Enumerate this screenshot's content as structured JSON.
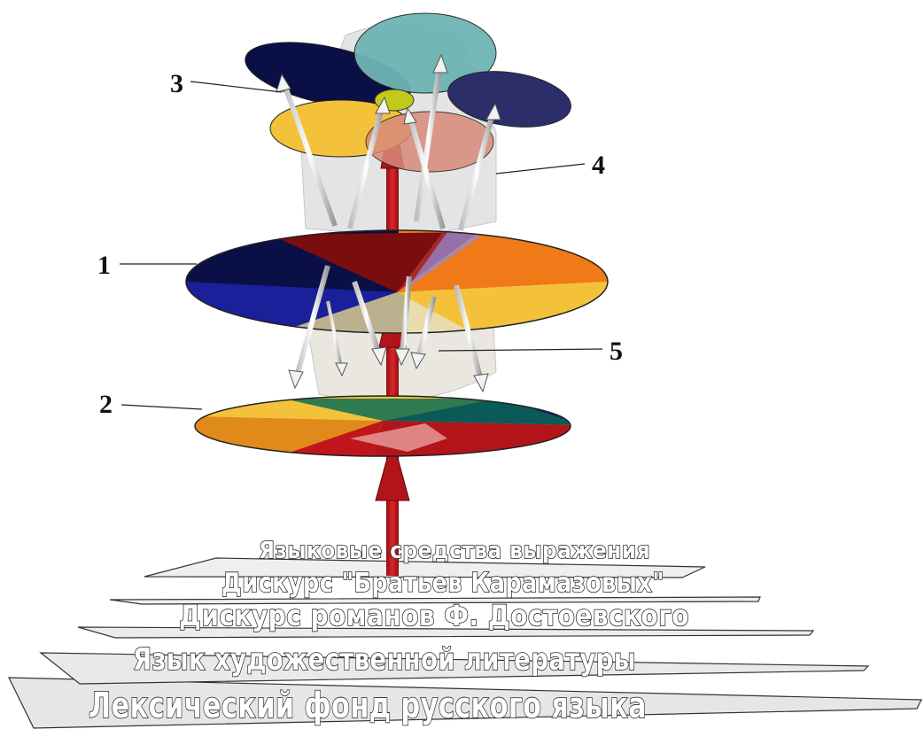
{
  "callouts": {
    "c1": "1",
    "c2": "2",
    "c3": "3",
    "c4": "4",
    "c5": "5"
  },
  "layers": {
    "l1": "Языковые средства выражения",
    "l2": "Дискурс \"Братьев Карамазовых\"",
    "l3": "Дискурс романов Ф. Достоевского",
    "l4": "Язык художественной литературы",
    "l5": "Лексический фонд русского языка"
  },
  "colors": {
    "axis_red": "#c0161b",
    "disc_navy": "#0a0f45",
    "disc_maroon": "#7a0d0d",
    "disc_orange": "#f07a18",
    "disc_yellow": "#f4c23a",
    "disc_teal": "#0b5a5a",
    "disc_green": "#2f7a4f",
    "disc_cyan": "#6fb4b4",
    "arrow_white": "#f2f2f2",
    "hull_gray": "#cfcfcf"
  }
}
